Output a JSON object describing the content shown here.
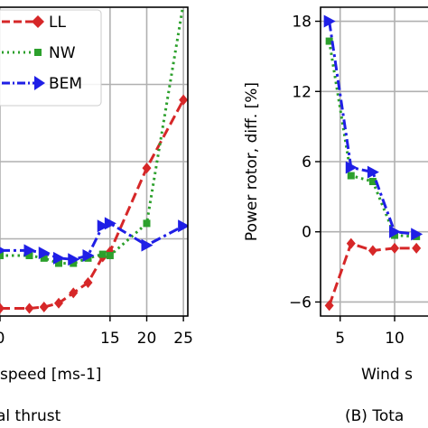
{
  "chart_data": [
    {
      "type": "line",
      "panel_label": "al thrust",
      "xlabel": "speed [ms-1]",
      "ylabel": "",
      "xlim": [
        0,
        25.6
      ],
      "ylim": [
        -6,
        18
      ],
      "x_ticks": [
        0,
        15,
        20,
        25
      ],
      "x_tick_labels": [
        "0",
        "15",
        "20",
        "25"
      ],
      "grid": true,
      "legend_position": "top-left",
      "series": [
        {
          "name": "LL",
          "color": "#d62728",
          "dash": "dashed",
          "marker": "diamond",
          "x": [
            0,
            4,
            6,
            8,
            10,
            12,
            14,
            15,
            20,
            25
          ],
          "y": [
            -5.4,
            -5.4,
            -5.3,
            -5.0,
            -4.2,
            -3.4,
            -1.4,
            -1.0,
            5.5,
            10.8
          ]
        },
        {
          "name": "NW",
          "color": "#2ca02c",
          "dash": "dotted",
          "marker": "square",
          "x": [
            0,
            4,
            6,
            8,
            10,
            12,
            14,
            15,
            20,
            25
          ],
          "y": [
            -1.3,
            -1.3,
            -1.5,
            -1.9,
            -1.9,
            -1.5,
            -1.2,
            -1.3,
            1.2,
            18.3
          ]
        },
        {
          "name": "BEM",
          "color": "#1f1fe6",
          "dash": "dashdot",
          "marker": "triangle-right",
          "x": [
            0,
            4,
            6,
            8,
            10,
            12,
            14,
            15,
            20,
            25
          ],
          "y": [
            -0.9,
            -0.9,
            -1.1,
            -1.5,
            -1.6,
            -1.3,
            1.0,
            1.2,
            -0.5,
            1.0
          ]
        }
      ]
    },
    {
      "type": "line",
      "panel_label": "(B) Tota",
      "xlabel": "Wind s",
      "ylabel": "Power rotor, diff. [%]",
      "xlim": [
        3.2,
        25
      ],
      "ylim": [
        -7.2,
        19.2
      ],
      "y_ticks": [
        -6,
        0,
        6,
        12,
        18
      ],
      "y_tick_labels": [
        "−6",
        "0",
        "6",
        "12",
        "18"
      ],
      "x_ticks": [
        5,
        10
      ],
      "x_tick_labels": [
        "5",
        "10"
      ],
      "grid": true,
      "series": [
        {
          "name": "LL",
          "color": "#d62728",
          "dash": "dashed",
          "marker": "diamond",
          "x": [
            4,
            6,
            8,
            10,
            12
          ],
          "y": [
            -6.3,
            -1.0,
            -1.6,
            -1.4,
            -1.4
          ]
        },
        {
          "name": "NW",
          "color": "#2ca02c",
          "dash": "dotted",
          "marker": "square",
          "x": [
            4,
            6,
            8,
            10,
            12
          ],
          "y": [
            16.3,
            4.8,
            4.3,
            -0.3,
            -0.4
          ]
        },
        {
          "name": "BEM",
          "color": "#1f1fe6",
          "dash": "dashdot",
          "marker": "triangle-right",
          "x": [
            4,
            6,
            8,
            10,
            12
          ],
          "y": [
            18.0,
            5.5,
            5.1,
            0.0,
            -0.2
          ]
        }
      ]
    }
  ]
}
